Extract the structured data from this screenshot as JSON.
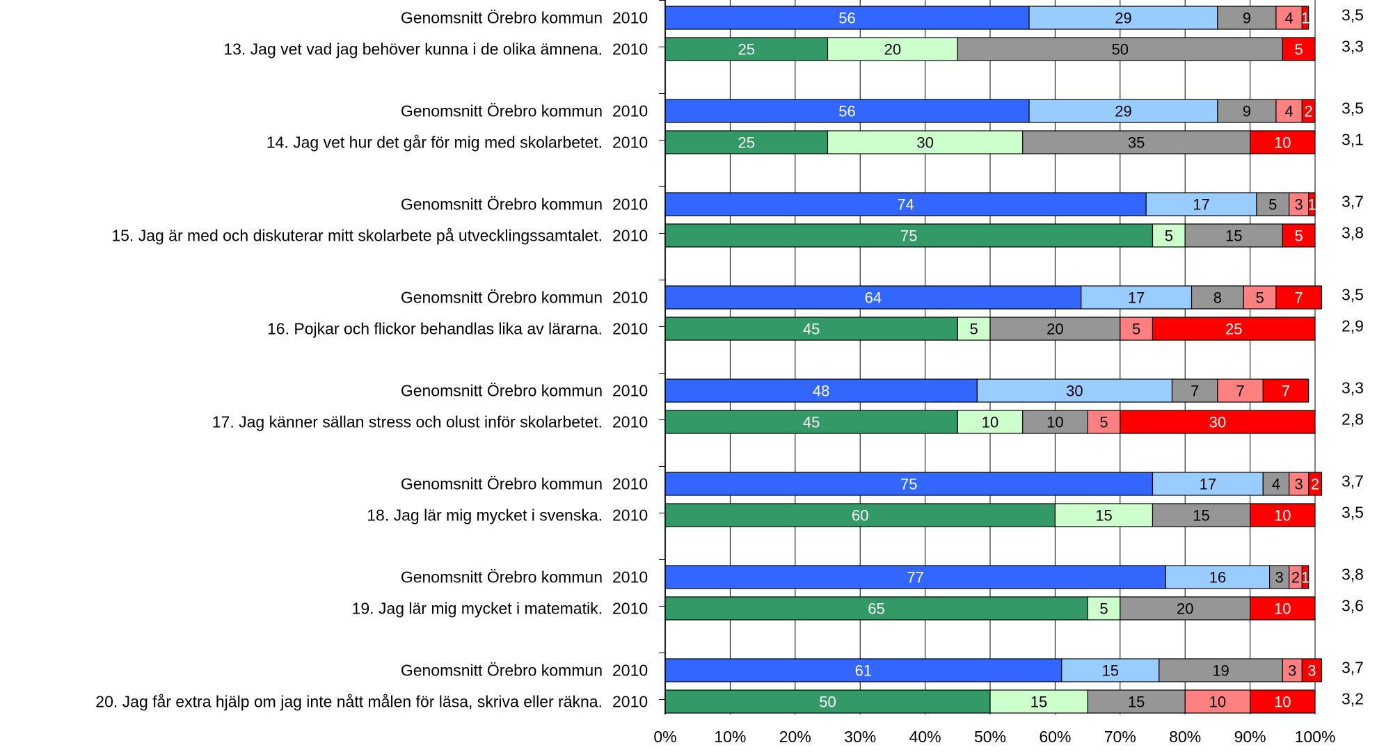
{
  "chart_data": {
    "type": "bar",
    "orientation": "horizontal",
    "stacked": true,
    "percent": true,
    "xlim": [
      0,
      100
    ],
    "x_ticks": [
      "0%",
      "10%",
      "20%",
      "30%",
      "40%",
      "50%",
      "60%",
      "70%",
      "80%",
      "90%",
      "100%"
    ],
    "grid": "vertical",
    "legend": "none",
    "palettes": {
      "kommun": [
        "#3366ff",
        "#99ccff",
        "#969696",
        "#ff8080",
        "#ff0000"
      ],
      "skola": [
        "#339966",
        "#ccffcc",
        "#969696",
        "#ff8080",
        "#ff0000"
      ]
    },
    "text_colors": [
      "#ffffff",
      "#000000",
      "#000000",
      "#000000",
      "#ffffff"
    ],
    "rows": [
      {
        "label": "Genomsnitt Örebro kommun",
        "year": "2010",
        "palette": "kommun",
        "values": [
          56,
          29,
          9,
          4,
          1
        ],
        "score": "3,5"
      },
      {
        "label": "13.  Jag vet vad jag behöver kunna i de olika ämnena.",
        "year": "2010",
        "palette": "skola",
        "values": [
          25,
          20,
          50,
          0,
          5
        ],
        "score": "3,3"
      },
      {
        "label": "Genomsnitt Örebro kommun",
        "year": "2010",
        "palette": "kommun",
        "values": [
          56,
          29,
          9,
          4,
          2
        ],
        "score": "3,5"
      },
      {
        "label": "14.  Jag vet hur det går för mig med skolarbetet.",
        "year": "2010",
        "palette": "skola",
        "values": [
          25,
          30,
          35,
          0,
          10
        ],
        "score": "3,1"
      },
      {
        "label": "Genomsnitt Örebro kommun",
        "year": "2010",
        "palette": "kommun",
        "values": [
          74,
          17,
          5,
          3,
          1
        ],
        "score": "3,7"
      },
      {
        "label": "15.  Jag är med och diskuterar mitt skolarbete på utvecklingssamtalet.",
        "year": "2010",
        "palette": "skola",
        "values": [
          75,
          5,
          15,
          0,
          5
        ],
        "score": "3,8"
      },
      {
        "label": "Genomsnitt Örebro kommun",
        "year": "2010",
        "palette": "kommun",
        "values": [
          64,
          17,
          8,
          5,
          7
        ],
        "score": "3,5"
      },
      {
        "label": "16.  Pojkar och flickor behandlas lika av lärarna.",
        "year": "2010",
        "palette": "skola",
        "values": [
          45,
          5,
          20,
          5,
          25
        ],
        "score": "2,9"
      },
      {
        "label": "Genomsnitt Örebro kommun",
        "year": "2010",
        "palette": "kommun",
        "values": [
          48,
          30,
          7,
          7,
          7
        ],
        "score": "3,3"
      },
      {
        "label": "17.  Jag känner sällan stress och olust inför skolarbetet.",
        "year": "2010",
        "palette": "skola",
        "values": [
          45,
          10,
          10,
          5,
          30
        ],
        "score": "2,8"
      },
      {
        "label": "Genomsnitt Örebro kommun",
        "year": "2010",
        "palette": "kommun",
        "values": [
          75,
          17,
          4,
          3,
          2
        ],
        "score": "3,7"
      },
      {
        "label": "18.  Jag lär mig mycket i svenska.",
        "year": "2010",
        "palette": "skola",
        "values": [
          60,
          15,
          15,
          0,
          10
        ],
        "score": "3,5"
      },
      {
        "label": "Genomsnitt Örebro kommun",
        "year": "2010",
        "palette": "kommun",
        "values": [
          77,
          16,
          3,
          2,
          1
        ],
        "score": "3,8"
      },
      {
        "label": "19.  Jag lär mig mycket i matematik.",
        "year": "2010",
        "palette": "skola",
        "values": [
          65,
          5,
          20,
          0,
          10
        ],
        "score": "3,6"
      },
      {
        "label": "Genomsnitt Örebro kommun",
        "year": "2010",
        "palette": "kommun",
        "values": [
          61,
          15,
          19,
          3,
          3
        ],
        "score": "3,7"
      },
      {
        "label": "20.  Jag får extra hjälp om jag inte nått målen för läsa, skriva eller räkna.",
        "year": "2010",
        "palette": "skola",
        "values": [
          50,
          15,
          15,
          10,
          10
        ],
        "score": "3,2"
      }
    ]
  }
}
